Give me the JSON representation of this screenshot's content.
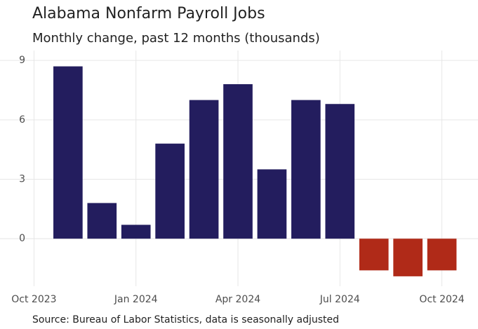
{
  "chart_data": {
    "type": "bar",
    "title": "Alabama Nonfarm Payroll Jobs",
    "subtitle": "Monthly change, past 12 months (thousands)",
    "caption": "Source: Bureau of Labor Statistics, data is seasonally adjusted",
    "x": [
      "2023-11",
      "2023-12",
      "2024-01",
      "2024-02",
      "2024-03",
      "2024-04",
      "2024-05",
      "2024-06",
      "2024-07",
      "2024-08",
      "2024-09",
      "2024-10"
    ],
    "values": [
      8.7,
      1.8,
      0.7,
      4.8,
      7.0,
      7.8,
      3.5,
      7.0,
      6.8,
      -1.6,
      -1.9,
      -1.6
    ],
    "color_positive": "#231d5e",
    "color_negative": "#b02a18",
    "xlim": [
      "2023-09",
      "2024-11"
    ],
    "xticks": [
      {
        "value": "2023-10",
        "label": "Oct 2023"
      },
      {
        "value": "2024-01",
        "label": "Jan 2024"
      },
      {
        "value": "2024-04",
        "label": "Apr 2024"
      },
      {
        "value": "2024-07",
        "label": "Jul 2024"
      },
      {
        "value": "2024-10",
        "label": "Oct 2024"
      }
    ],
    "ylim": [
      -2.4,
      9.5
    ],
    "yticks": [
      0,
      3,
      6,
      9
    ],
    "grid": true
  }
}
